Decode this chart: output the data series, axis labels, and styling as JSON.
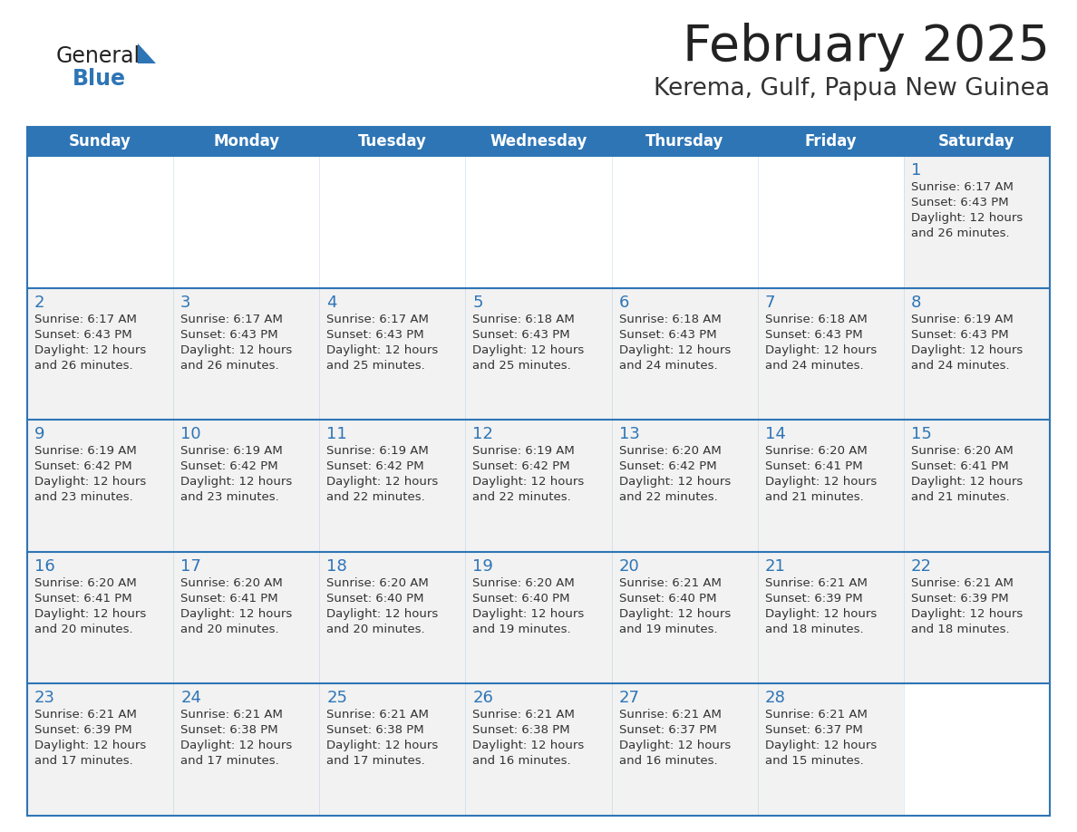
{
  "title": "February 2025",
  "subtitle": "Kerema, Gulf, Papua New Guinea",
  "days_of_week": [
    "Sunday",
    "Monday",
    "Tuesday",
    "Wednesday",
    "Thursday",
    "Friday",
    "Saturday"
  ],
  "header_bg": "#2E75B6",
  "header_text": "#FFFFFF",
  "cell_border": "#2E75B6",
  "day_number_color": "#2E75B6",
  "cell_text_color": "#333333",
  "cell_bg": "#F2F2F2",
  "bg_color": "#FFFFFF",
  "logo_general_color": "#222222",
  "logo_blue_color": "#2E75B6",
  "title_color": "#222222",
  "subtitle_color": "#333333",
  "calendar_data": [
    [
      null,
      null,
      null,
      null,
      null,
      null,
      {
        "day": 1,
        "sunrise": "6:17 AM",
        "sunset": "6:43 PM",
        "daylight": "12 hours",
        "daylight2": "and 26 minutes."
      }
    ],
    [
      {
        "day": 2,
        "sunrise": "6:17 AM",
        "sunset": "6:43 PM",
        "daylight": "12 hours",
        "daylight2": "and 26 minutes."
      },
      {
        "day": 3,
        "sunrise": "6:17 AM",
        "sunset": "6:43 PM",
        "daylight": "12 hours",
        "daylight2": "and 26 minutes."
      },
      {
        "day": 4,
        "sunrise": "6:17 AM",
        "sunset": "6:43 PM",
        "daylight": "12 hours",
        "daylight2": "and 25 minutes."
      },
      {
        "day": 5,
        "sunrise": "6:18 AM",
        "sunset": "6:43 PM",
        "daylight": "12 hours",
        "daylight2": "and 25 minutes."
      },
      {
        "day": 6,
        "sunrise": "6:18 AM",
        "sunset": "6:43 PM",
        "daylight": "12 hours",
        "daylight2": "and 24 minutes."
      },
      {
        "day": 7,
        "sunrise": "6:18 AM",
        "sunset": "6:43 PM",
        "daylight": "12 hours",
        "daylight2": "and 24 minutes."
      },
      {
        "day": 8,
        "sunrise": "6:19 AM",
        "sunset": "6:43 PM",
        "daylight": "12 hours",
        "daylight2": "and 24 minutes."
      }
    ],
    [
      {
        "day": 9,
        "sunrise": "6:19 AM",
        "sunset": "6:42 PM",
        "daylight": "12 hours",
        "daylight2": "and 23 minutes."
      },
      {
        "day": 10,
        "sunrise": "6:19 AM",
        "sunset": "6:42 PM",
        "daylight": "12 hours",
        "daylight2": "and 23 minutes."
      },
      {
        "day": 11,
        "sunrise": "6:19 AM",
        "sunset": "6:42 PM",
        "daylight": "12 hours",
        "daylight2": "and 22 minutes."
      },
      {
        "day": 12,
        "sunrise": "6:19 AM",
        "sunset": "6:42 PM",
        "daylight": "12 hours",
        "daylight2": "and 22 minutes."
      },
      {
        "day": 13,
        "sunrise": "6:20 AM",
        "sunset": "6:42 PM",
        "daylight": "12 hours",
        "daylight2": "and 22 minutes."
      },
      {
        "day": 14,
        "sunrise": "6:20 AM",
        "sunset": "6:41 PM",
        "daylight": "12 hours",
        "daylight2": "and 21 minutes."
      },
      {
        "day": 15,
        "sunrise": "6:20 AM",
        "sunset": "6:41 PM",
        "daylight": "12 hours",
        "daylight2": "and 21 minutes."
      }
    ],
    [
      {
        "day": 16,
        "sunrise": "6:20 AM",
        "sunset": "6:41 PM",
        "daylight": "12 hours",
        "daylight2": "and 20 minutes."
      },
      {
        "day": 17,
        "sunrise": "6:20 AM",
        "sunset": "6:41 PM",
        "daylight": "12 hours",
        "daylight2": "and 20 minutes."
      },
      {
        "day": 18,
        "sunrise": "6:20 AM",
        "sunset": "6:40 PM",
        "daylight": "12 hours",
        "daylight2": "and 20 minutes."
      },
      {
        "day": 19,
        "sunrise": "6:20 AM",
        "sunset": "6:40 PM",
        "daylight": "12 hours",
        "daylight2": "and 19 minutes."
      },
      {
        "day": 20,
        "sunrise": "6:21 AM",
        "sunset": "6:40 PM",
        "daylight": "12 hours",
        "daylight2": "and 19 minutes."
      },
      {
        "day": 21,
        "sunrise": "6:21 AM",
        "sunset": "6:39 PM",
        "daylight": "12 hours",
        "daylight2": "and 18 minutes."
      },
      {
        "day": 22,
        "sunrise": "6:21 AM",
        "sunset": "6:39 PM",
        "daylight": "12 hours",
        "daylight2": "and 18 minutes."
      }
    ],
    [
      {
        "day": 23,
        "sunrise": "6:21 AM",
        "sunset": "6:39 PM",
        "daylight": "12 hours",
        "daylight2": "and 17 minutes."
      },
      {
        "day": 24,
        "sunrise": "6:21 AM",
        "sunset": "6:38 PM",
        "daylight": "12 hours",
        "daylight2": "and 17 minutes."
      },
      {
        "day": 25,
        "sunrise": "6:21 AM",
        "sunset": "6:38 PM",
        "daylight": "12 hours",
        "daylight2": "and 17 minutes."
      },
      {
        "day": 26,
        "sunrise": "6:21 AM",
        "sunset": "6:38 PM",
        "daylight": "12 hours",
        "daylight2": "and 16 minutes."
      },
      {
        "day": 27,
        "sunrise": "6:21 AM",
        "sunset": "6:37 PM",
        "daylight": "12 hours",
        "daylight2": "and 16 minutes."
      },
      {
        "day": 28,
        "sunrise": "6:21 AM",
        "sunset": "6:37 PM",
        "daylight": "12 hours",
        "daylight2": "and 15 minutes."
      },
      null
    ]
  ]
}
